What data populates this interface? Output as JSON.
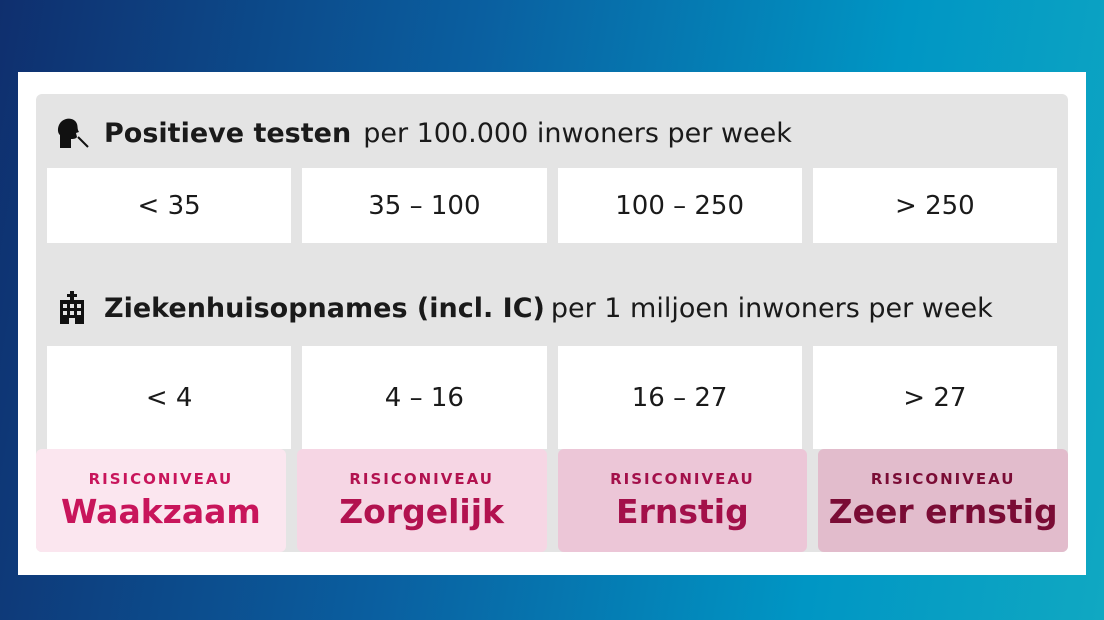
{
  "tests": {
    "title": "Positieve testen",
    "subtitle": "per 100.000 inwoners per week",
    "icon": "person-swab-test-icon",
    "values": [
      "< 35",
      "35 – 100",
      "100 – 250",
      "> 250"
    ]
  },
  "hospital": {
    "title": "Ziekenhuisopnames (incl. IC)",
    "subtitle": "per 1 miljoen inwoners per week",
    "icon": "hospital-building-icon",
    "values": [
      "< 4",
      "4 – 16",
      "16 – 27",
      "> 27"
    ]
  },
  "levels": [
    {
      "label": "RISICONIVEAU",
      "name": "Waakzaam",
      "bg": "#fbe6ef",
      "color": "#c8155b"
    },
    {
      "label": "RISICONIVEAU",
      "name": "Zorgelijk",
      "bg": "#f6d6e4",
      "color": "#b2124f"
    },
    {
      "label": "RISICONIVEAU",
      "name": "Ernstig",
      "bg": "#ecc6d7",
      "color": "#a3104a"
    },
    {
      "label": "RISICONIVEAU",
      "name": "Zeer ernstig",
      "bg": "#e2bccc",
      "color": "#7a0c35"
    }
  ]
}
